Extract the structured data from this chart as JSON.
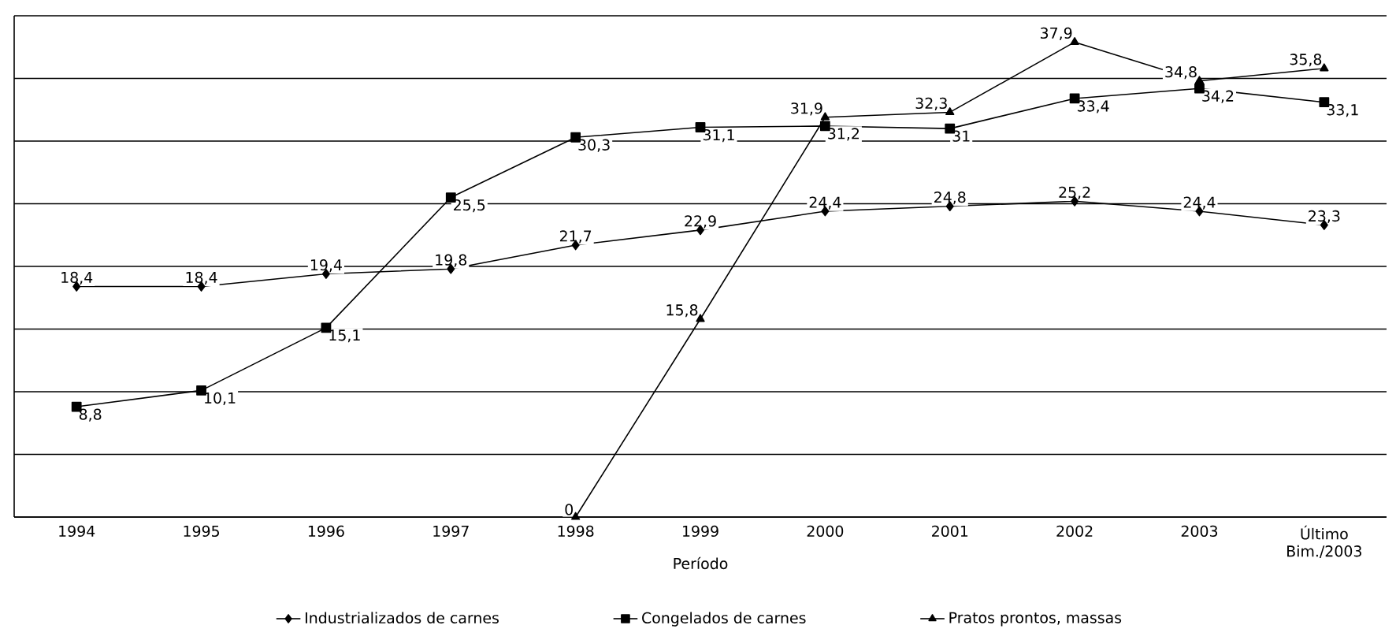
{
  "chart_data": {
    "type": "line",
    "xlabel": "Período",
    "categories": [
      "1994",
      "1995",
      "1996",
      "1997",
      "1998",
      "1999",
      "2000",
      "2001",
      "2002",
      "2003",
      "Último Bim./2003"
    ],
    "series": [
      {
        "name": "Industrializados de carnes",
        "color": "#000000",
        "marker": "diamond",
        "values": [
          18.4,
          18.4,
          19.4,
          19.8,
          21.7,
          22.9,
          24.4,
          24.8,
          25.2,
          24.4,
          23.3
        ],
        "value_labels": [
          "18,4",
          "18,4",
          "19,4",
          "19,8",
          "21,7",
          "22,9",
          "24,4",
          "24,8",
          "25,2",
          "24,4",
          "23,3"
        ]
      },
      {
        "name": "Congelados de carnes",
        "color": "#000000",
        "marker": "square",
        "values": [
          8.8,
          10.1,
          15.1,
          25.5,
          30.3,
          31.1,
          31.2,
          31,
          33.4,
          34.2,
          33.1
        ],
        "value_labels": [
          "8,8",
          "10,1",
          "15,1",
          "25,5",
          "30,3",
          "31,1",
          "31,2",
          "31",
          "33,4",
          "34,2",
          "33,1"
        ]
      },
      {
        "name": "Pratos prontos, massas",
        "color": "#000000",
        "marker": "triangle",
        "values": [
          null,
          null,
          null,
          null,
          0,
          15.8,
          31.9,
          32.3,
          37.9,
          34.8,
          35.8
        ],
        "value_labels": [
          null,
          null,
          null,
          null,
          "0",
          "15,8",
          "31,9",
          "32,3",
          "37,9",
          "34,8",
          "35,8"
        ]
      }
    ],
    "ylim": [
      0,
      40
    ],
    "yticks": [
      0,
      5,
      10,
      15,
      20,
      25,
      30,
      35,
      40
    ],
    "grid": "y",
    "tick_labels": "x",
    "legend": "bottom",
    "line_style": "solid"
  }
}
